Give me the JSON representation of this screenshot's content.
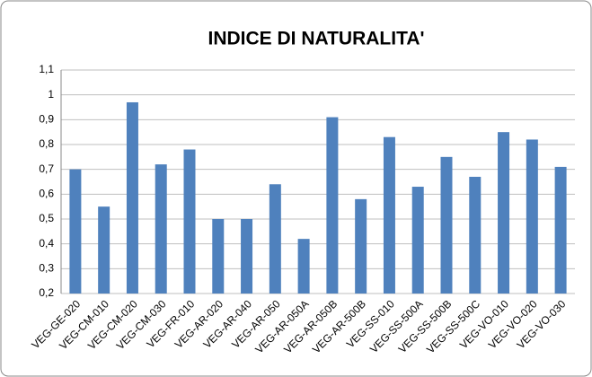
{
  "chart_data": {
    "type": "bar",
    "title": "INDICE DI NATURALITA'",
    "categories": [
      "VEG-GE-020",
      "VEG-CM-010",
      "VEG-CM-020",
      "VEG-CM-030",
      "VEG-FR-010",
      "VEG-AR-020",
      "VEG-AR-040",
      "VEG-AR-050",
      "VEG-AR-050A",
      "VEG-AR-050B",
      "VEG-AR-500B",
      "VEG-SS-010",
      "VEG-SS-500A",
      "VEG-SS-500B",
      "VEG-SS-500C",
      "VEG-VO-010",
      "VEG-VO-020",
      "VEG-VO-030"
    ],
    "values": [
      0.7,
      0.55,
      0.97,
      0.72,
      0.78,
      0.5,
      0.5,
      0.64,
      0.42,
      0.91,
      0.58,
      0.83,
      0.63,
      0.75,
      0.67,
      0.85,
      0.82,
      0.71
    ],
    "color": "#4f81bd",
    "ylim": [
      0.2,
      1.1
    ],
    "yticks": [
      {
        "value": 0.2,
        "label": "0,2"
      },
      {
        "value": 0.3,
        "label": "0,3"
      },
      {
        "value": 0.4,
        "label": "0,4"
      },
      {
        "value": 0.5,
        "label": "0,5"
      },
      {
        "value": 0.6,
        "label": "0,6"
      },
      {
        "value": 0.7,
        "label": "0,7"
      },
      {
        "value": 0.8,
        "label": "0,8"
      },
      {
        "value": 0.9,
        "label": "0,9"
      },
      1,
      {
        "value": 1.1,
        "label": "1,1"
      }
    ],
    "grid": true
  }
}
